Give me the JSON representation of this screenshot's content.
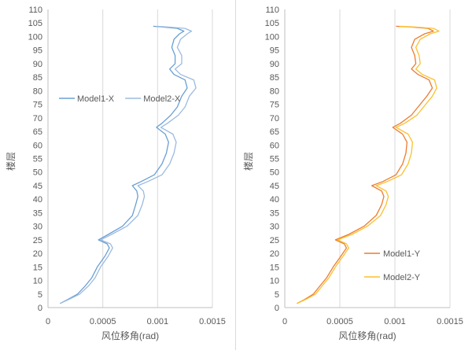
{
  "chart_data": [
    {
      "type": "line",
      "xlabel": "风位移角(rad)",
      "ylabel": "楼层",
      "xlim": [
        0,
        0.0015
      ],
      "ylim": [
        0,
        110
      ],
      "x_ticks": [
        "0",
        "0.0005",
        "0.001",
        "0.0015"
      ],
      "y_ticks": [
        "0",
        "5",
        "10",
        "15",
        "20",
        "25",
        "30",
        "35",
        "40",
        "45",
        "50",
        "55",
        "60",
        "65",
        "70",
        "75",
        "80",
        "85",
        "90",
        "95",
        "100",
        "105",
        "110"
      ],
      "grid": "vertical",
      "legend_position": "center-left",
      "colors": {
        "series1": "#6a9fd4",
        "series2": "#9bbbe0"
      },
      "series": [
        {
          "name": "Model1-X",
          "points": [
            [
              0.00011,
              1.5
            ],
            [
              0.00018,
              3
            ],
            [
              0.00027,
              5
            ],
            [
              0.00034,
              8
            ],
            [
              0.0004,
              11
            ],
            [
              0.00045,
              15
            ],
            [
              0.00052,
              19
            ],
            [
              0.00056,
              22
            ],
            [
              0.00054,
              23.5
            ],
            [
              0.00046,
              25
            ],
            [
              0.00055,
              27
            ],
            [
              0.00068,
              30
            ],
            [
              0.00077,
              34
            ],
            [
              0.0008,
              38
            ],
            [
              0.00082,
              41
            ],
            [
              0.00081,
              43
            ],
            [
              0.00077,
              45
            ],
            [
              0.00085,
              46.5
            ],
            [
              0.00097,
              49
            ],
            [
              0.00104,
              53
            ],
            [
              0.00108,
              57
            ],
            [
              0.0011,
              61
            ],
            [
              0.00107,
              64
            ],
            [
              0.00099,
              66.5
            ],
            [
              0.00104,
              68
            ],
            [
              0.00112,
              71
            ],
            [
              0.00118,
              74
            ],
            [
              0.0012,
              76
            ],
            [
              0.00122,
              78
            ],
            [
              0.00127,
              81
            ],
            [
              0.00125,
              84
            ],
            [
              0.00115,
              86
            ],
            [
              0.00111,
              88
            ],
            [
              0.00116,
              90
            ],
            [
              0.00116,
              93
            ],
            [
              0.00113,
              96
            ],
            [
              0.00115,
              99
            ],
            [
              0.0012,
              101
            ],
            [
              0.00124,
              102
            ],
            [
              0.00118,
              103
            ],
            [
              0.00105,
              103.5
            ],
            [
              0.00096,
              103.8
            ]
          ]
        },
        {
          "name": "Model2-X",
          "points": [
            [
              0.00011,
              1.5
            ],
            [
              0.00019,
              3
            ],
            [
              0.00029,
              5
            ],
            [
              0.00037,
              8
            ],
            [
              0.00043,
              11
            ],
            [
              0.00048,
              15
            ],
            [
              0.00055,
              19
            ],
            [
              0.00059,
              22
            ],
            [
              0.00057,
              23.5
            ],
            [
              0.00048,
              25
            ],
            [
              0.00058,
              27
            ],
            [
              0.00072,
              30
            ],
            [
              0.00082,
              34
            ],
            [
              0.00086,
              38
            ],
            [
              0.00088,
              41
            ],
            [
              0.00087,
              43
            ],
            [
              0.00082,
              45
            ],
            [
              0.00091,
              46.5
            ],
            [
              0.00104,
              49
            ],
            [
              0.00111,
              53
            ],
            [
              0.00115,
              57
            ],
            [
              0.00117,
              61
            ],
            [
              0.00114,
              64
            ],
            [
              0.00103,
              66.5
            ],
            [
              0.00109,
              68
            ],
            [
              0.00119,
              71
            ],
            [
              0.00125,
              74
            ],
            [
              0.00127,
              76
            ],
            [
              0.00129,
              78
            ],
            [
              0.00135,
              81
            ],
            [
              0.00133,
              84
            ],
            [
              0.00121,
              86
            ],
            [
              0.00116,
              88
            ],
            [
              0.00122,
              90
            ],
            [
              0.00122,
              93
            ],
            [
              0.00118,
              96
            ],
            [
              0.00121,
              99
            ],
            [
              0.00127,
              101
            ],
            [
              0.00131,
              102
            ],
            [
              0.00125,
              103
            ],
            [
              0.0011,
              103.5
            ],
            [
              0.00099,
              103.8
            ]
          ]
        }
      ]
    },
    {
      "type": "line",
      "xlabel": "风位移角(rad)",
      "ylabel": "楼层",
      "xlim": [
        0,
        0.0015
      ],
      "ylim": [
        0,
        110
      ],
      "x_ticks": [
        "0",
        "0.0005",
        "0.001",
        "0.0015"
      ],
      "y_ticks": [
        "0",
        "5",
        "10",
        "15",
        "20",
        "25",
        "30",
        "35",
        "40",
        "45",
        "50",
        "55",
        "60",
        "65",
        "70",
        "75",
        "80",
        "85",
        "90",
        "95",
        "100",
        "105",
        "110"
      ],
      "grid": "vertical",
      "legend_position": "bottom-right",
      "colors": {
        "series1": "#ec7c30",
        "series2": "#fbc02d"
      },
      "series": [
        {
          "name": "Model1-Y",
          "points": [
            [
              0.00011,
              1.5
            ],
            [
              0.00018,
              3
            ],
            [
              0.00026,
              5
            ],
            [
              0.00032,
              8
            ],
            [
              0.00038,
              11
            ],
            [
              0.00044,
              15
            ],
            [
              0.00051,
              19
            ],
            [
              0.00056,
              22
            ],
            [
              0.00054,
              23.5
            ],
            [
              0.00046,
              25
            ],
            [
              0.00058,
              27
            ],
            [
              0.00072,
              30
            ],
            [
              0.00083,
              34
            ],
            [
              0.00088,
              38
            ],
            [
              0.0009,
              41
            ],
            [
              0.00088,
              43
            ],
            [
              0.00079,
              45
            ],
            [
              0.00089,
              46.5
            ],
            [
              0.00101,
              49
            ],
            [
              0.00107,
              53
            ],
            [
              0.0011,
              57
            ],
            [
              0.00111,
              61
            ],
            [
              0.00107,
              64
            ],
            [
              0.00098,
              66.5
            ],
            [
              0.00105,
              68
            ],
            [
              0.00115,
              71
            ],
            [
              0.00121,
              74
            ],
            [
              0.00125,
              76
            ],
            [
              0.00129,
              78
            ],
            [
              0.00134,
              81
            ],
            [
              0.00131,
              84
            ],
            [
              0.00121,
              86
            ],
            [
              0.00115,
              88
            ],
            [
              0.00119,
              90
            ],
            [
              0.00118,
              93
            ],
            [
              0.00115,
              96
            ],
            [
              0.00118,
              99
            ],
            [
              0.00127,
              101
            ],
            [
              0.00135,
              102
            ],
            [
              0.0013,
              103
            ],
            [
              0.00115,
              103.5
            ],
            [
              0.00101,
              103.8
            ]
          ]
        },
        {
          "name": "Model2-Y",
          "points": [
            [
              0.00011,
              1.5
            ],
            [
              0.00019,
              3
            ],
            [
              0.00028,
              5
            ],
            [
              0.00034,
              8
            ],
            [
              0.0004,
              11
            ],
            [
              0.00046,
              15
            ],
            [
              0.00053,
              19
            ],
            [
              0.00058,
              22
            ],
            [
              0.00056,
              23.5
            ],
            [
              0.00048,
              25
            ],
            [
              0.00061,
              27
            ],
            [
              0.00075,
              30
            ],
            [
              0.00087,
              34
            ],
            [
              0.00092,
              38
            ],
            [
              0.00094,
              41
            ],
            [
              0.00092,
              43
            ],
            [
              0.00083,
              45
            ],
            [
              0.00093,
              46.5
            ],
            [
              0.00106,
              49
            ],
            [
              0.00112,
              53
            ],
            [
              0.00115,
              57
            ],
            [
              0.00116,
              61
            ],
            [
              0.00112,
              64
            ],
            [
              0.00101,
              66.5
            ],
            [
              0.00109,
              68
            ],
            [
              0.0012,
              71
            ],
            [
              0.00126,
              74
            ],
            [
              0.0013,
              76
            ],
            [
              0.00134,
              78
            ],
            [
              0.00138,
              81
            ],
            [
              0.00136,
              84
            ],
            [
              0.00125,
              86
            ],
            [
              0.00119,
              88
            ],
            [
              0.00123,
              90
            ],
            [
              0.00122,
              93
            ],
            [
              0.00119,
              96
            ],
            [
              0.00123,
              99
            ],
            [
              0.00132,
              101
            ],
            [
              0.0014,
              102
            ],
            [
              0.00135,
              103
            ],
            [
              0.00119,
              103.5
            ],
            [
              0.00104,
              103.8
            ]
          ]
        }
      ]
    }
  ]
}
